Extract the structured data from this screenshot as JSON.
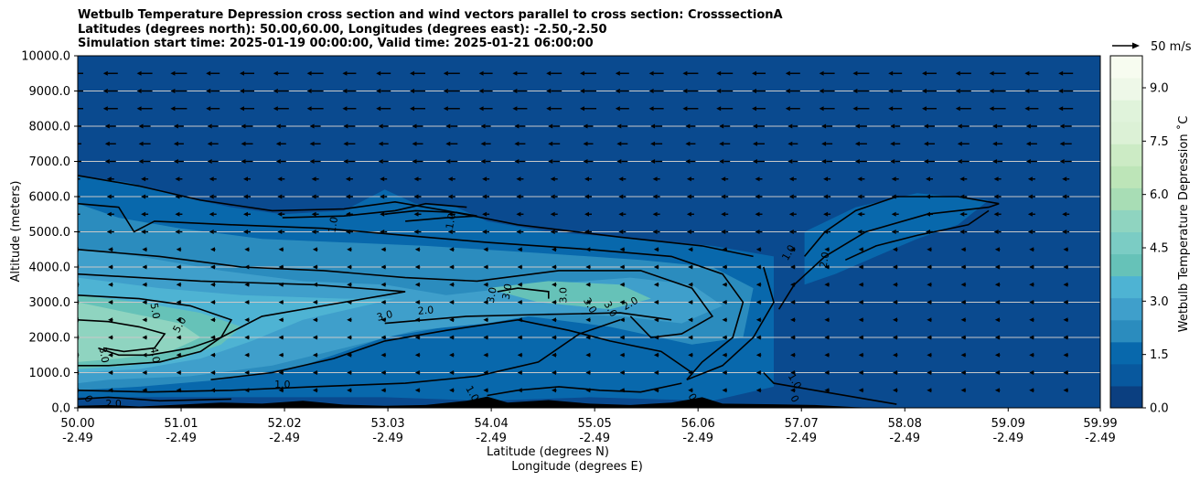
{
  "title_lines": [
    "Wetbulb Temperature Depression cross section and wind vectors parallel to cross section: CrosssectionA",
    "Latitudes (degrees north): 50.00,60.00, Longitudes (degrees east): -2.50,-2.50",
    "Simulation start time: 2025-01-19 00:00:00, Valid time: 2025-01-21 06:00:00"
  ],
  "quiver_key_label": "50 m/s",
  "colorbar_label": "Wetbulb Temperature Depression ˚C",
  "colorbar_ticks": [
    "0.0",
    "1.5",
    "3.0",
    "4.5",
    "6.0",
    "7.5",
    "9.0"
  ],
  "colors": {
    "background_fill": "#0a4a8f",
    "colormap": [
      "#0b3f80",
      "#08589e",
      "#0868ac",
      "#2b8cbe",
      "#3f9fcb",
      "#4eb3d3",
      "#66c2b8",
      "#7bccc4",
      "#8fd4c0",
      "#a8ddb5",
      "#bde5b8",
      "#ccebc5",
      "#dcf1d6",
      "#e0f3db",
      "#eef8e8",
      "#f7fcf0"
    ]
  },
  "chart_data": {
    "type": "contourf",
    "title": "Wetbulb Temperature Depression cross section and wind vectors parallel to cross section: CrosssectionA",
    "xlabel_1": "Latitude (degrees N)",
    "xlabel_2": "Longitude (degrees E)",
    "ylabel": "Altitude (meters)",
    "xlim": [
      50.0,
      59.99
    ],
    "ylim": [
      0,
      10000
    ],
    "x_ticks": [
      {
        "lat": "50.00",
        "lon": "-2.49"
      },
      {
        "lat": "51.01",
        "lon": "-2.49"
      },
      {
        "lat": "52.02",
        "lon": "-2.49"
      },
      {
        "lat": "53.03",
        "lon": "-2.49"
      },
      {
        "lat": "54.04",
        "lon": "-2.49"
      },
      {
        "lat": "55.05",
        "lon": "-2.49"
      },
      {
        "lat": "56.06",
        "lon": "-2.49"
      },
      {
        "lat": "57.07",
        "lon": "-2.49"
      },
      {
        "lat": "58.08",
        "lon": "-2.49"
      },
      {
        "lat": "59.09",
        "lon": "-2.49"
      },
      {
        "lat": "59.99",
        "lon": "-2.49"
      }
    ],
    "y_ticks": [
      "0.0",
      "1000.0",
      "2000.0",
      "3000.0",
      "4000.0",
      "5000.0",
      "6000.0",
      "7000.0",
      "8000.0",
      "9000.0",
      "10000.0"
    ],
    "grid": "horizontal",
    "colorbar_range": [
      0.0,
      9.9
    ],
    "contour_labels": [
      {
        "text": "1.0",
        "x": 52.5,
        "y": 5200,
        "rot": -80
      },
      {
        "text": "1.0",
        "x": 53.65,
        "y": 5300,
        "rot": -80
      },
      {
        "text": "1.0",
        "x": 56.95,
        "y": 4400,
        "rot": -60
      },
      {
        "text": "2.0",
        "x": 57.3,
        "y": 4200,
        "rot": -80
      },
      {
        "text": "5.0",
        "x": 50.75,
        "y": 2750,
        "rot": 80
      },
      {
        "text": "5.0",
        "x": 51.0,
        "y": 2350,
        "rot": -60
      },
      {
        "text": "4.0",
        "x": 50.75,
        "y": 1500,
        "rot": 80
      },
      {
        "text": "3.0",
        "x": 50.25,
        "y": 1500,
        "rot": 80
      },
      {
        "text": "3.0",
        "x": 53.0,
        "y": 2600,
        "rot": -15
      },
      {
        "text": "2.0",
        "x": 53.4,
        "y": 2750,
        "rot": -5
      },
      {
        "text": "1.0",
        "x": 52.0,
        "y": 650,
        "rot": 0
      },
      {
        "text": "1.0",
        "x": 53.85,
        "y": 400,
        "rot": 60
      },
      {
        "text": "3.0",
        "x": 54.05,
        "y": 3200,
        "rot": -80
      },
      {
        "text": "3.0",
        "x": 54.2,
        "y": 3300,
        "rot": -80
      },
      {
        "text": "3.0",
        "x": 54.75,
        "y": 3200,
        "rot": -90
      },
      {
        "text": "3.0",
        "x": 55.0,
        "y": 2900,
        "rot": 60
      },
      {
        "text": "3.0",
        "x": 55.2,
        "y": 2800,
        "rot": 60
      },
      {
        "text": "2.0",
        "x": 55.4,
        "y": 2950,
        "rot": -30
      },
      {
        "text": "1.0",
        "x": 57.0,
        "y": 750,
        "rot": 60
      },
      {
        "text": "2.0",
        "x": 50.35,
        "y": 100,
        "rot": 0
      },
      {
        "text": "0",
        "x": 50.1,
        "y": 250,
        "rot": 60
      },
      {
        "text": "0",
        "x": 56.0,
        "y": 300,
        "rot": 60
      },
      {
        "text": "0",
        "x": 57.0,
        "y": 250,
        "rot": 60
      }
    ]
  }
}
